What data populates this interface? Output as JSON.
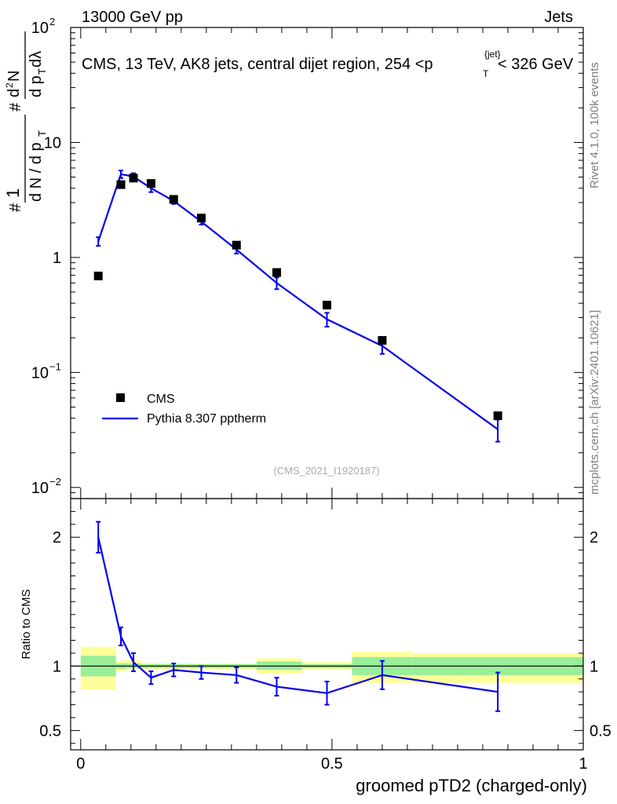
{
  "header": {
    "left": "13000 GeV pp",
    "right": "Jets"
  },
  "side_labels": {
    "rivet": "Rivet 4.1.0,  100k events",
    "mcplots": "mcplots.cern.ch [arXiv:2401.10621]"
  },
  "watermark": "(CMS_2021_I1920187)",
  "colors": {
    "data": "#000000",
    "mc": "#0000ee",
    "band_inner": "#99ee99",
    "band_outer": "#ffff99"
  },
  "chart_data": {
    "type": "line",
    "title": {
      "main": "CMS, 13 TeV, AK8 jets, central dijet region, 254 <p",
      "sub": "T",
      "sup": "{jet}",
      "end": "< 326 GeV"
    },
    "xlabel": "groomed pTD2 (charged-only)",
    "ylabel": {
      "n1": "1",
      "den_a": "d N / d p",
      "den_sub": "T",
      "num": "d",
      "num_sup": "2",
      "num_n": "N",
      "den2_a": "d p",
      "den2_sub": "T",
      "den2_b": " dλ",
      "hash": "#"
    },
    "ratio_ylabel": "Ratio to CMS",
    "xlim": [
      -0.02,
      1.0
    ],
    "ylim": [
      0.008,
      100
    ],
    "ratio_ylim": [
      0.35,
      2.3
    ],
    "x_ticks": [
      {
        "value": 0,
        "label": "0"
      },
      {
        "value": 0.5,
        "label": "0.5"
      },
      {
        "value": 1,
        "label": "1"
      }
    ],
    "y_ticks": [
      {
        "value": 0.01,
        "base": "10",
        "exp": "−2"
      },
      {
        "value": 0.1,
        "base": "10",
        "exp": "−1"
      },
      {
        "value": 1,
        "base": "1",
        "exp": ""
      },
      {
        "value": 10,
        "base": "10",
        "exp": ""
      },
      {
        "value": 100,
        "base": "10",
        "exp": "2"
      }
    ],
    "ratio_y_ticks": [
      {
        "value": 0.5,
        "label": "0.5"
      },
      {
        "value": 1,
        "label": "1"
      },
      {
        "value": 2,
        "label": "2"
      }
    ],
    "legend": [
      {
        "label": "CMS",
        "kind": "marker"
      },
      {
        "label": "Pythia 8.307 pptherm",
        "kind": "line"
      }
    ],
    "legend_position": "bottom-left",
    "series": [
      {
        "name": "CMS",
        "x": [
          0.035,
          0.08,
          0.105,
          0.14,
          0.185,
          0.24,
          0.31,
          0.39,
          0.49,
          0.6,
          0.83
        ],
        "y": [
          0.69,
          4.3,
          4.9,
          4.4,
          3.2,
          2.2,
          1.28,
          0.74,
          0.385,
          0.19,
          0.042
        ],
        "xerr": [
          0.035,
          0.01,
          0.015,
          0.02,
          0.025,
          0.03,
          0.04,
          0.05,
          0.05,
          0.065,
          0.17
        ]
      },
      {
        "name": "Pythia 8.307 pptherm",
        "x": [
          0.035,
          0.08,
          0.105,
          0.14,
          0.185,
          0.24,
          0.31,
          0.39,
          0.49,
          0.6,
          0.83
        ],
        "y": [
          1.38,
          5.3,
          5.05,
          4.0,
          3.1,
          2.05,
          1.17,
          0.6,
          0.29,
          0.17,
          0.032
        ],
        "yerr": [
          0.12,
          0.4,
          0.35,
          0.3,
          0.18,
          0.12,
          0.09,
          0.07,
          0.04,
          0.025,
          0.007
        ]
      }
    ],
    "ratio": {
      "x": [
        0.035,
        0.08,
        0.105,
        0.14,
        0.185,
        0.24,
        0.31,
        0.39,
        0.49,
        0.6,
        0.83
      ],
      "values": [
        2.0,
        1.23,
        1.03,
        0.91,
        0.97,
        0.95,
        0.93,
        0.84,
        0.79,
        0.93,
        0.8
      ],
      "errors": [
        0.12,
        0.07,
        0.07,
        0.05,
        0.05,
        0.05,
        0.06,
        0.07,
        0.09,
        0.11,
        0.15
      ],
      "bands": [
        {
          "x0": 0.0,
          "x1": 0.07,
          "inner": [
            0.92,
            1.08
          ],
          "outer": [
            0.82,
            1.15
          ]
        },
        {
          "x0": 0.07,
          "x1": 0.09,
          "inner": [
            0.98,
            1.02
          ],
          "outer": [
            0.96,
            1.04
          ]
        },
        {
          "x0": 0.09,
          "x1": 0.12,
          "inner": [
            0.985,
            1.02
          ],
          "outer": [
            0.97,
            1.05
          ]
        },
        {
          "x0": 0.12,
          "x1": 0.16,
          "inner": [
            0.985,
            1.015
          ],
          "outer": [
            0.975,
            1.025
          ]
        },
        {
          "x0": 0.16,
          "x1": 0.21,
          "inner": [
            0.985,
            1.015
          ],
          "outer": [
            0.975,
            1.02
          ]
        },
        {
          "x0": 0.21,
          "x1": 0.27,
          "inner": [
            0.985,
            1.015
          ],
          "outer": [
            0.975,
            1.02
          ]
        },
        {
          "x0": 0.27,
          "x1": 0.35,
          "inner": [
            0.985,
            1.015
          ],
          "outer": [
            0.975,
            1.02
          ]
        },
        {
          "x0": 0.35,
          "x1": 0.44,
          "inner": [
            0.97,
            1.035
          ],
          "outer": [
            0.94,
            1.06
          ]
        },
        {
          "x0": 0.44,
          "x1": 0.54,
          "inner": [
            0.985,
            1.015
          ],
          "outer": [
            0.97,
            1.03
          ]
        },
        {
          "x0": 0.54,
          "x1": 0.66,
          "inner": [
            0.93,
            1.07
          ],
          "outer": [
            0.87,
            1.11
          ]
        },
        {
          "x0": 0.66,
          "x1": 1.0,
          "inner": [
            0.93,
            1.07
          ],
          "outer": [
            0.87,
            1.1
          ]
        }
      ]
    }
  }
}
